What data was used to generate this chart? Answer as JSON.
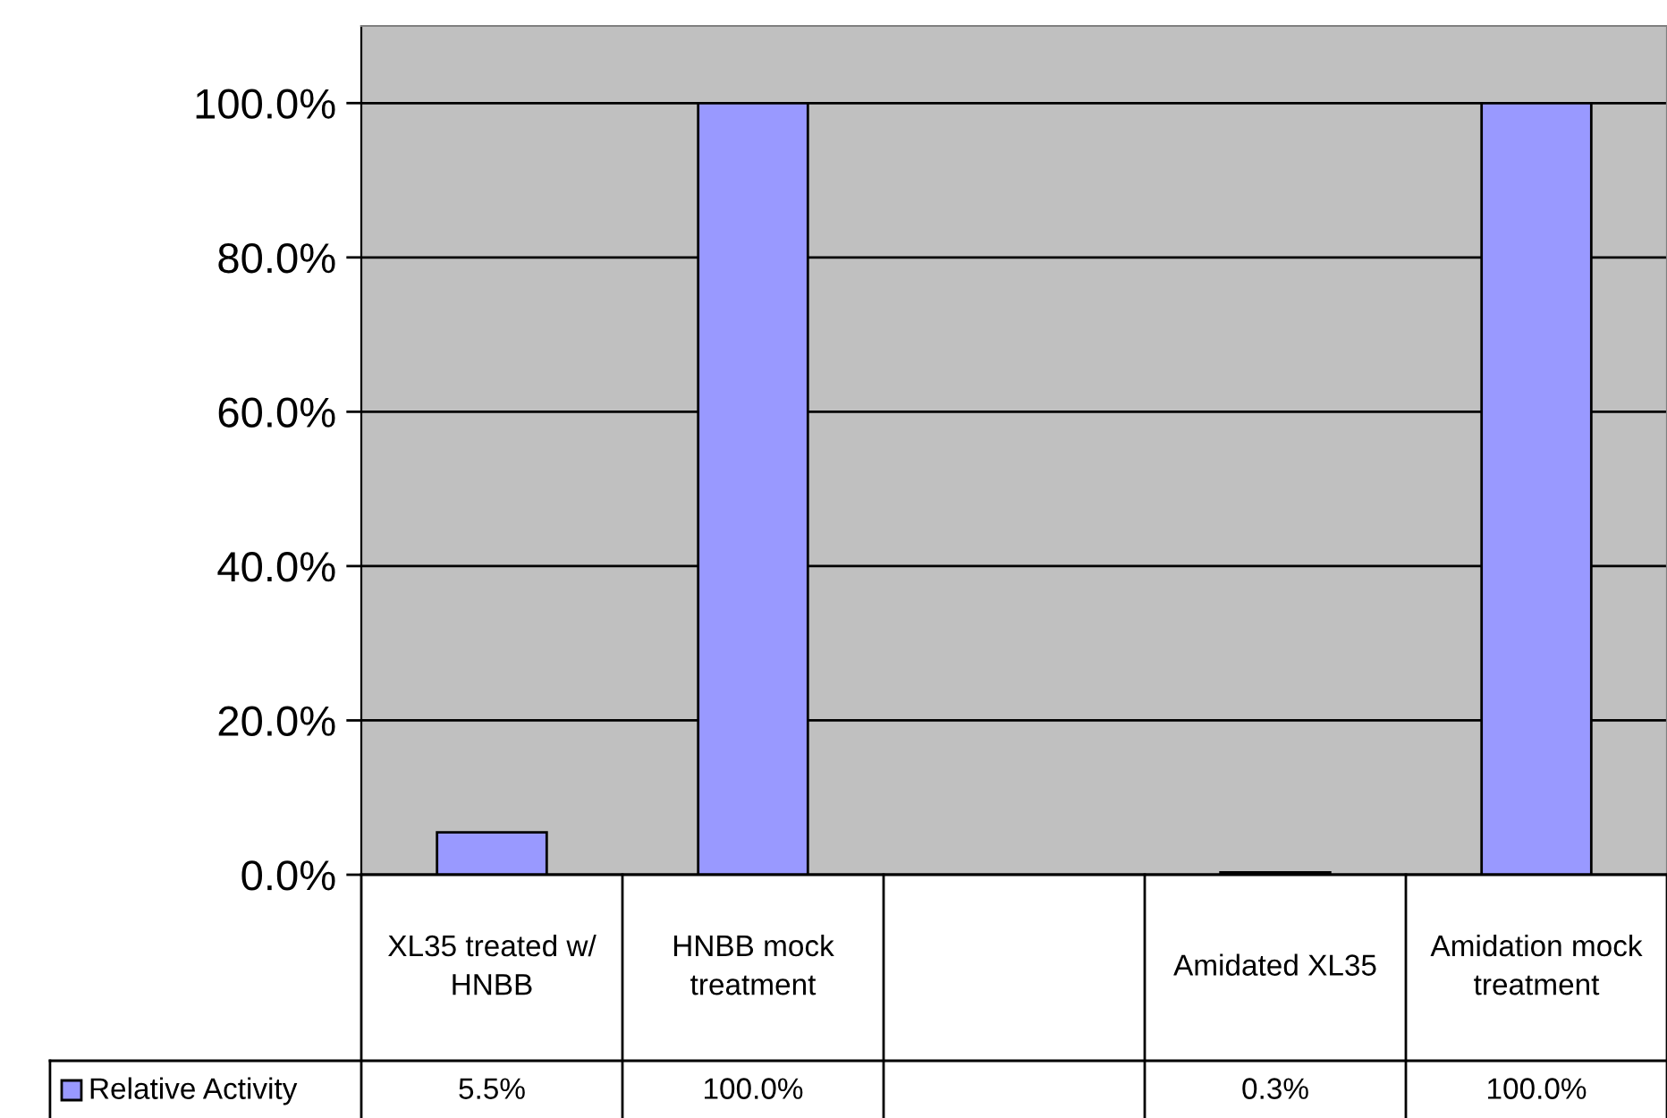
{
  "chart_data": {
    "type": "bar",
    "categories": [
      "XL35 treated w/ HNBB",
      "HNBB mock treatment",
      null,
      "Amidated XL35",
      "Amidation mock treatment"
    ],
    "series": [
      {
        "name": "Relative Activity",
        "color": "#9999ff",
        "values": [
          5.5,
          100.0,
          null,
          0.3,
          100.0
        ],
        "value_labels": [
          "5.5%",
          "100.0%",
          null,
          "0.3%",
          "100.0%"
        ]
      }
    ],
    "ylim": [
      0,
      110
    ],
    "yticks": [
      {
        "value": 0,
        "label": "0.0%"
      },
      {
        "value": 20,
        "label": "20.0%"
      },
      {
        "value": 40,
        "label": "40.0%"
      },
      {
        "value": 60,
        "label": "60.0%"
      },
      {
        "value": 80,
        "label": "80.0%"
      },
      {
        "value": 100,
        "label": "100.0%"
      }
    ],
    "grid": "y",
    "legend": "bottom left"
  }
}
